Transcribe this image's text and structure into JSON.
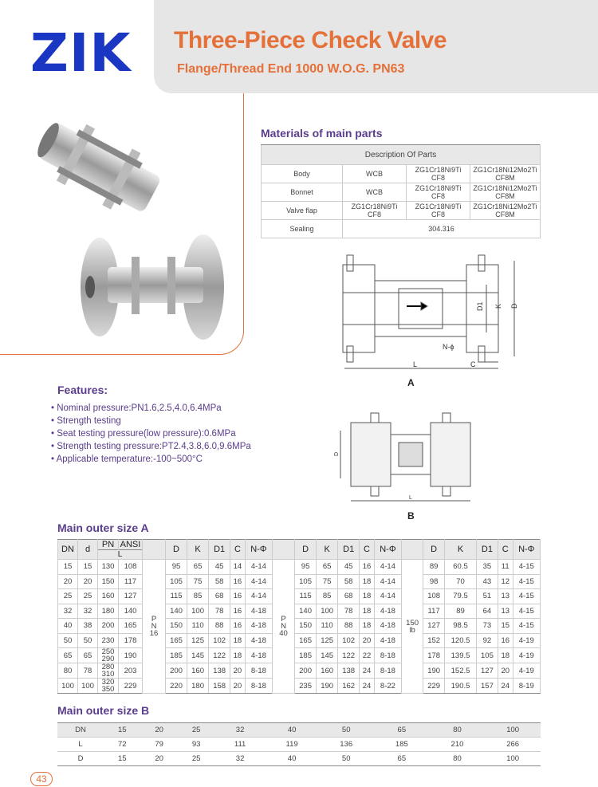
{
  "brand": "ZIK",
  "header": {
    "title": "Three-Piece Check Valve",
    "subtitle": "Flange/Thread End 1000 W.O.G. PN63"
  },
  "materials": {
    "heading": "Materials of main parts",
    "table_header": "Description Of Parts",
    "rows": [
      {
        "part": "Body",
        "c1": "WCB",
        "c2": [
          "ZG1Cr18Ni9Ti",
          "CF8"
        ],
        "c3": [
          "ZG1Cr18Ni12Mo2Ti",
          "CF8M"
        ]
      },
      {
        "part": "Bonnet",
        "c1": "WCB",
        "c2": [
          "ZG1Cr18Ni9Ti",
          "CF8"
        ],
        "c3": [
          "ZG1Cr18Ni12Mo2Ti",
          "CF8M"
        ]
      },
      {
        "part": "Valve flap",
        "c1": [
          "ZG1Cr18Ni9Ti",
          "CF8"
        ],
        "c2": [
          "ZG1Cr18Ni9Ti",
          "CF8"
        ],
        "c3": [
          "ZG1Cr18Ni12Mo2Ti",
          "CF8M"
        ]
      }
    ],
    "sealing": {
      "part": "Sealing",
      "value": "304.316"
    }
  },
  "drawings": {
    "a_label": "A",
    "b_label": "B",
    "a_dims": {
      "d1": "D1",
      "k": "K",
      "d": "D",
      "n_phi": "N-ϕ",
      "l": "L",
      "c": "C"
    },
    "b_dims": {
      "d": "D",
      "l": "L"
    }
  },
  "features": {
    "heading": "Features:",
    "items": [
      "Nominal pressure:PN1.6,2.5,4.0,6.4MPa",
      "Strength testing",
      "Seat testing pressure(low pressure):0.6MPa",
      "Strength testing pressure:PT2.4,3.8,6.0,9.6MPa",
      "Applicable temperature:-100~500°C"
    ]
  },
  "size_a": {
    "heading": "Main outer size A",
    "headers": {
      "dn": "DN",
      "d": "d",
      "pn": "PN",
      "ansi": "ANSI",
      "l": "L",
      "cols": [
        "D",
        "K",
        "D1",
        "C",
        "N-Φ"
      ]
    },
    "groups": {
      "pn16": [
        "P",
        "N",
        "16"
      ],
      "pn40": [
        "P",
        "N",
        "40"
      ],
      "lb150": [
        "150",
        "lb"
      ]
    },
    "rows": [
      {
        "dn": "15",
        "d": "15",
        "pn": [
          "130"
        ],
        "ansi": "108",
        "pn16": [
          "95",
          "65",
          "45",
          "14",
          "4-14"
        ],
        "pn40": [
          "95",
          "65",
          "45",
          "16",
          "4-14"
        ],
        "lb150": [
          "89",
          "60.5",
          "35",
          "11",
          "4-15"
        ]
      },
      {
        "dn": "20",
        "d": "20",
        "pn": [
          "150"
        ],
        "ansi": "117",
        "pn16": [
          "105",
          "75",
          "58",
          "16",
          "4-14"
        ],
        "pn40": [
          "105",
          "75",
          "58",
          "18",
          "4-14"
        ],
        "lb150": [
          "98",
          "70",
          "43",
          "12",
          "4-15"
        ]
      },
      {
        "dn": "25",
        "d": "25",
        "pn": [
          "160"
        ],
        "ansi": "127",
        "pn16": [
          "115",
          "85",
          "68",
          "16",
          "4-14"
        ],
        "pn40": [
          "115",
          "85",
          "68",
          "18",
          "4-14"
        ],
        "lb150": [
          "108",
          "79.5",
          "51",
          "13",
          "4-15"
        ]
      },
      {
        "dn": "32",
        "d": "32",
        "pn": [
          "180"
        ],
        "ansi": "140",
        "pn16": [
          "140",
          "100",
          "78",
          "16",
          "4-18"
        ],
        "pn40": [
          "140",
          "100",
          "78",
          "18",
          "4-18"
        ],
        "lb150": [
          "117",
          "89",
          "64",
          "13",
          "4-15"
        ]
      },
      {
        "dn": "40",
        "d": "38",
        "pn": [
          "200"
        ],
        "ansi": "165",
        "pn16": [
          "150",
          "110",
          "88",
          "16",
          "4-18"
        ],
        "pn40": [
          "150",
          "110",
          "88",
          "18",
          "4-18"
        ],
        "lb150": [
          "127",
          "98.5",
          "73",
          "15",
          "4-15"
        ]
      },
      {
        "dn": "50",
        "d": "50",
        "pn": [
          "230"
        ],
        "ansi": "178",
        "pn16": [
          "165",
          "125",
          "102",
          "18",
          "4-18"
        ],
        "pn40": [
          "165",
          "125",
          "102",
          "20",
          "4-18"
        ],
        "lb150": [
          "152",
          "120.5",
          "92",
          "16",
          "4-19"
        ]
      },
      {
        "dn": "65",
        "d": "65",
        "pn": [
          "250",
          "290"
        ],
        "ansi": "190",
        "pn16": [
          "185",
          "145",
          "122",
          "18",
          "4-18"
        ],
        "pn40": [
          "185",
          "145",
          "122",
          "22",
          "8-18"
        ],
        "lb150": [
          "178",
          "139.5",
          "105",
          "18",
          "4-19"
        ]
      },
      {
        "dn": "80",
        "d": "78",
        "pn": [
          "280",
          "310"
        ],
        "ansi": "203",
        "pn16": [
          "200",
          "160",
          "138",
          "20",
          "8-18"
        ],
        "pn40": [
          "200",
          "160",
          "138",
          "24",
          "8-18"
        ],
        "lb150": [
          "190",
          "152.5",
          "127",
          "20",
          "4-19"
        ]
      },
      {
        "dn": "100",
        "d": "100",
        "pn": [
          "320",
          "350"
        ],
        "ansi": "229",
        "pn16": [
          "220",
          "180",
          "158",
          "20",
          "8-18"
        ],
        "pn40": [
          "235",
          "190",
          "162",
          "24",
          "8-22"
        ],
        "lb150": [
          "229",
          "190.5",
          "157",
          "24",
          "8-19"
        ]
      }
    ]
  },
  "size_b": {
    "heading": "Main outer size B",
    "rows": [
      {
        "label": "DN",
        "values": [
          "15",
          "20",
          "25",
          "32",
          "40",
          "50",
          "65",
          "80",
          "100"
        ]
      },
      {
        "label": "L",
        "values": [
          "72",
          "79",
          "93",
          "111",
          "119",
          "136",
          "185",
          "210",
          "266"
        ]
      },
      {
        "label": "D",
        "values": [
          "15",
          "20",
          "25",
          "32",
          "40",
          "50",
          "65",
          "80",
          "100"
        ]
      }
    ]
  },
  "page_number": "43",
  "colors": {
    "brand_blue": "#1a37c4",
    "accent_orange": "#e5713a",
    "heading_purple": "#5a3d8c"
  }
}
